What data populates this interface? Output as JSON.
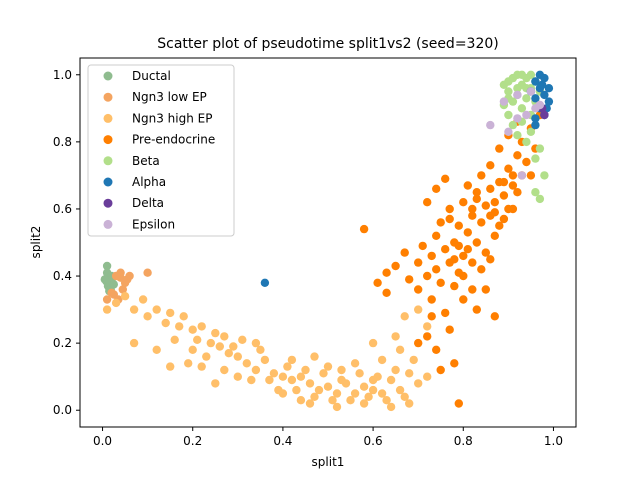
{
  "chart_data": {
    "type": "scatter",
    "title": "Scatter plot of pseudotime split1vs2 (seed=320)",
    "xlabel": "split1",
    "ylabel": "split2",
    "xlim": [
      -0.05,
      1.05
    ],
    "ylim": [
      -0.05,
      1.05
    ],
    "xticks": [
      "0.0",
      "0.2",
      "0.4",
      "0.6",
      "0.8",
      "1.0"
    ],
    "yticks": [
      "0.0",
      "0.2",
      "0.4",
      "0.6",
      "0.8",
      "1.0"
    ],
    "grid": false,
    "legend_position": "upper-left",
    "series": [
      {
        "name": "Ductal",
        "color": "#8fbc8f",
        "points": [
          [
            0.01,
            0.43
          ],
          [
            0.01,
            0.41
          ],
          [
            0.015,
            0.39
          ],
          [
            0.02,
            0.38
          ],
          [
            0.012,
            0.37
          ],
          [
            0.018,
            0.36
          ],
          [
            0.02,
            0.4
          ],
          [
            0.008,
            0.385
          ],
          [
            0.025,
            0.375
          ],
          [
            0.015,
            0.355
          ],
          [
            0.005,
            0.39
          ],
          [
            0.022,
            0.395
          ]
        ]
      },
      {
        "name": "Ngn3 low EP",
        "color": "#f4a460",
        "points": [
          [
            0.03,
            0.4
          ],
          [
            0.04,
            0.41
          ],
          [
            0.1,
            0.41
          ],
          [
            0.035,
            0.33
          ],
          [
            0.05,
            0.38
          ],
          [
            0.045,
            0.36
          ],
          [
            0.02,
            0.35
          ],
          [
            0.055,
            0.39
          ],
          [
            0.01,
            0.33
          ],
          [
            0.06,
            0.4
          ],
          [
            0.04,
            0.395
          ],
          [
            0.025,
            0.345
          ]
        ]
      },
      {
        "name": "Ngn3 high EP",
        "color": "#ffbf69",
        "points": [
          [
            0.01,
            0.3
          ],
          [
            0.03,
            0.32
          ],
          [
            0.05,
            0.34
          ],
          [
            0.07,
            0.3
          ],
          [
            0.09,
            0.33
          ],
          [
            0.1,
            0.28
          ],
          [
            0.12,
            0.3
          ],
          [
            0.14,
            0.26
          ],
          [
            0.15,
            0.29
          ],
          [
            0.17,
            0.25
          ],
          [
            0.18,
            0.28
          ],
          [
            0.2,
            0.24
          ],
          [
            0.21,
            0.21
          ],
          [
            0.22,
            0.25
          ],
          [
            0.24,
            0.2
          ],
          [
            0.25,
            0.23
          ],
          [
            0.26,
            0.19
          ],
          [
            0.28,
            0.17
          ],
          [
            0.3,
            0.16
          ],
          [
            0.32,
            0.14
          ],
          [
            0.34,
            0.12
          ],
          [
            0.36,
            0.15
          ],
          [
            0.38,
            0.11
          ],
          [
            0.4,
            0.1
          ],
          [
            0.42,
            0.09
          ],
          [
            0.44,
            0.1
          ],
          [
            0.46,
            0.08
          ],
          [
            0.48,
            0.06
          ],
          [
            0.5,
            0.07
          ],
          [
            0.52,
            0.05
          ],
          [
            0.54,
            0.08
          ],
          [
            0.56,
            0.05
          ],
          [
            0.58,
            0.07
          ],
          [
            0.6,
            0.06
          ],
          [
            0.62,
            0.05
          ],
          [
            0.64,
            0.09
          ],
          [
            0.66,
            0.06
          ],
          [
            0.68,
            0.11
          ],
          [
            0.7,
            0.08
          ],
          [
            0.07,
            0.2
          ],
          [
            0.12,
            0.18
          ],
          [
            0.16,
            0.21
          ],
          [
            0.2,
            0.18
          ],
          [
            0.23,
            0.16
          ],
          [
            0.27,
            0.22
          ],
          [
            0.29,
            0.19
          ],
          [
            0.31,
            0.21
          ],
          [
            0.35,
            0.18
          ],
          [
            0.37,
            0.09
          ],
          [
            0.41,
            0.13
          ],
          [
            0.43,
            0.06
          ],
          [
            0.45,
            0.12
          ],
          [
            0.47,
            0.04
          ],
          [
            0.49,
            0.11
          ],
          [
            0.51,
            0.03
          ],
          [
            0.53,
            0.12
          ],
          [
            0.55,
            0.03
          ],
          [
            0.57,
            0.11
          ],
          [
            0.59,
            0.04
          ],
          [
            0.61,
            0.1
          ],
          [
            0.63,
            0.03
          ],
          [
            0.65,
            0.12
          ],
          [
            0.67,
            0.04
          ],
          [
            0.69,
            0.15
          ],
          [
            0.72,
            0.1
          ],
          [
            0.6,
            0.2
          ],
          [
            0.65,
            0.22
          ],
          [
            0.67,
            0.28
          ],
          [
            0.7,
            0.3
          ],
          [
            0.72,
            0.25
          ],
          [
            0.25,
            0.08
          ],
          [
            0.3,
            0.1
          ],
          [
            0.5,
            0.13
          ],
          [
            0.56,
            0.14
          ],
          [
            0.62,
            0.15
          ],
          [
            0.66,
            0.18
          ],
          [
            0.4,
            0.05
          ],
          [
            0.46,
            0.02
          ],
          [
            0.52,
            0.01
          ],
          [
            0.58,
            0.02
          ],
          [
            0.64,
            0.01
          ],
          [
            0.33,
            0.09
          ],
          [
            0.39,
            0.06
          ],
          [
            0.44,
            0.03
          ],
          [
            0.19,
            0.14
          ],
          [
            0.15,
            0.13
          ],
          [
            0.27,
            0.12
          ],
          [
            0.53,
            0.09
          ],
          [
            0.6,
            0.09
          ],
          [
            0.68,
            0.02
          ],
          [
            0.42,
            0.15
          ],
          [
            0.47,
            0.16
          ],
          [
            0.34,
            0.2
          ],
          [
            0.22,
            0.13
          ]
        ]
      },
      {
        "name": "Pre-endocrine",
        "color": "#ff7f00",
        "points": [
          [
            0.58,
            0.54
          ],
          [
            0.61,
            0.38
          ],
          [
            0.63,
            0.41
          ],
          [
            0.63,
            0.35
          ],
          [
            0.65,
            0.43
          ],
          [
            0.67,
            0.47
          ],
          [
            0.68,
            0.39
          ],
          [
            0.7,
            0.44
          ],
          [
            0.7,
            0.36
          ],
          [
            0.71,
            0.49
          ],
          [
            0.72,
            0.4
          ],
          [
            0.73,
            0.46
          ],
          [
            0.73,
            0.33
          ],
          [
            0.74,
            0.52
          ],
          [
            0.74,
            0.42
          ],
          [
            0.75,
            0.38
          ],
          [
            0.75,
            0.56
          ],
          [
            0.76,
            0.48
          ],
          [
            0.76,
            0.29
          ],
          [
            0.77,
            0.44
          ],
          [
            0.77,
            0.6
          ],
          [
            0.78,
            0.37
          ],
          [
            0.78,
            0.5
          ],
          [
            0.79,
            0.55
          ],
          [
            0.79,
            0.41
          ],
          [
            0.8,
            0.62
          ],
          [
            0.8,
            0.46
          ],
          [
            0.8,
            0.33
          ],
          [
            0.81,
            0.53
          ],
          [
            0.81,
            0.67
          ],
          [
            0.82,
            0.58
          ],
          [
            0.82,
            0.44
          ],
          [
            0.83,
            0.63
          ],
          [
            0.83,
            0.5
          ],
          [
            0.84,
            0.7
          ],
          [
            0.84,
            0.56
          ],
          [
            0.85,
            0.61
          ],
          [
            0.85,
            0.47
          ],
          [
            0.86,
            0.66
          ],
          [
            0.86,
            0.73
          ],
          [
            0.87,
            0.59
          ],
          [
            0.87,
            0.52
          ],
          [
            0.88,
            0.68
          ],
          [
            0.88,
            0.78
          ],
          [
            0.89,
            0.64
          ],
          [
            0.89,
            0.57
          ],
          [
            0.9,
            0.72
          ],
          [
            0.9,
            0.82
          ],
          [
            0.91,
            0.67
          ],
          [
            0.91,
            0.6
          ],
          [
            0.92,
            0.76
          ],
          [
            0.92,
            0.86
          ],
          [
            0.93,
            0.7
          ],
          [
            0.93,
            0.8
          ],
          [
            0.94,
            0.74
          ],
          [
            0.95,
            0.84
          ],
          [
            0.96,
            0.78
          ],
          [
            0.97,
            0.88
          ],
          [
            0.72,
            0.62
          ],
          [
            0.74,
            0.66
          ],
          [
            0.73,
            0.28
          ],
          [
            0.72,
            0.22
          ],
          [
            0.75,
            0.12
          ],
          [
            0.78,
            0.14
          ],
          [
            0.79,
            0.02
          ],
          [
            0.74,
            0.18
          ],
          [
            0.77,
            0.24
          ],
          [
            0.7,
            0.2
          ],
          [
            0.83,
            0.3
          ],
          [
            0.87,
            0.28
          ],
          [
            0.76,
            0.69
          ],
          [
            0.77,
            0.57
          ],
          [
            0.85,
            0.36
          ],
          [
            0.8,
            0.4
          ],
          [
            0.82,
            0.36
          ],
          [
            0.84,
            0.42
          ],
          [
            0.86,
            0.45
          ],
          [
            0.81,
            0.48
          ],
          [
            0.79,
            0.49
          ],
          [
            0.78,
            0.45
          ],
          [
            0.9,
            0.6
          ],
          [
            0.88,
            0.55
          ],
          [
            0.86,
            0.58
          ],
          [
            0.87,
            0.62
          ],
          [
            0.83,
            0.65
          ],
          [
            0.89,
            0.68
          ],
          [
            0.91,
            0.7
          ],
          [
            0.92,
            0.65
          ],
          [
            0.82,
            0.6
          ],
          [
            0.95,
            0.7
          ]
        ]
      },
      {
        "name": "Beta",
        "color": "#b2df8a",
        "points": [
          [
            0.9,
            0.98
          ],
          [
            0.91,
            0.99
          ],
          [
            0.92,
            1.0
          ],
          [
            0.93,
            0.97
          ],
          [
            0.94,
            0.99
          ],
          [
            0.95,
            0.96
          ],
          [
            0.96,
            0.98
          ],
          [
            0.9,
            0.95
          ],
          [
            0.91,
            0.92
          ],
          [
            0.92,
            0.94
          ],
          [
            0.93,
            0.9
          ],
          [
            0.94,
            0.93
          ],
          [
            0.95,
            0.88
          ],
          [
            0.9,
            0.88
          ],
          [
            0.91,
            0.85
          ],
          [
            0.92,
            0.82
          ],
          [
            0.93,
            0.86
          ],
          [
            0.94,
            0.8
          ],
          [
            0.95,
            0.83
          ],
          [
            0.96,
            0.75
          ],
          [
            0.97,
            0.78
          ],
          [
            0.98,
            0.7
          ],
          [
            0.96,
            0.65
          ],
          [
            0.97,
            0.63
          ],
          [
            0.89,
            0.97
          ],
          [
            0.89,
            0.91
          ],
          [
            0.92,
            0.96
          ],
          [
            0.94,
            0.96
          ],
          [
            0.93,
            1.0
          ],
          [
            0.95,
            1.0
          ],
          [
            0.9,
            0.93
          ],
          [
            0.96,
            0.92
          ],
          [
            0.97,
            0.95
          ]
        ]
      },
      {
        "name": "Alpha",
        "color": "#1f77b4",
        "points": [
          [
            0.36,
            0.38
          ],
          [
            0.96,
            0.98
          ],
          [
            0.97,
            1.0
          ],
          [
            0.98,
            0.99
          ],
          [
            0.97,
            0.96
          ],
          [
            0.98,
            0.94
          ],
          [
            0.96,
            0.93
          ],
          [
            0.97,
            0.9
          ],
          [
            0.98,
            0.88
          ],
          [
            0.96,
            0.85
          ],
          [
            0.99,
            0.96
          ],
          [
            0.99,
            0.92
          ],
          [
            0.975,
            0.97
          ],
          [
            0.95,
            0.95
          ],
          [
            0.985,
            0.9
          ],
          [
            0.96,
            0.87
          ]
        ]
      },
      {
        "name": "Delta",
        "color": "#6a3d9a",
        "points": [
          [
            0.98,
            0.88
          ],
          [
            0.975,
            0.9
          ]
        ]
      },
      {
        "name": "Epsilon",
        "color": "#cab2d6",
        "points": [
          [
            0.89,
            0.92
          ],
          [
            0.92,
            0.87
          ],
          [
            0.95,
            0.95
          ],
          [
            0.96,
            0.9
          ],
          [
            0.94,
            0.88
          ],
          [
            0.93,
            0.7
          ],
          [
            0.86,
            0.85
          ],
          [
            0.9,
            0.83
          ],
          [
            0.97,
            0.91
          ],
          [
            0.92,
            0.94
          ]
        ]
      }
    ]
  }
}
